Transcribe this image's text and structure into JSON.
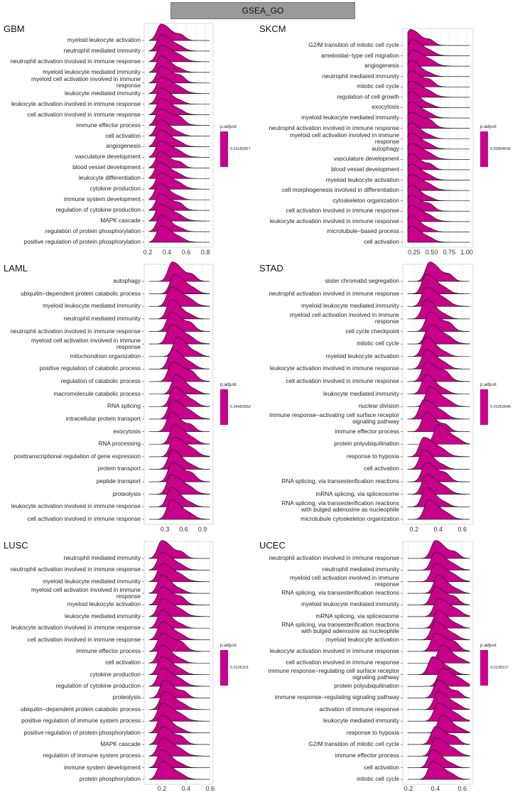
{
  "title": "GSEA_GO",
  "colors": {
    "fill": "#C8008A",
    "line": "#1a1a1a",
    "grid": "#ebebeb"
  },
  "chart_data": [
    {
      "type": "ridgeline",
      "title": "GBM",
      "xlim": [
        0.163,
        0.88
      ],
      "xticks": [
        "0.2",
        "0.4",
        "0.6",
        "0.8"
      ],
      "xtick_values": [
        0.2,
        0.4,
        0.6,
        0.8
      ],
      "legend": {
        "title": "p.adjust",
        "value": "0.01182827"
      },
      "categories": [
        "myeloid leukocyte activation",
        "neutrophil mediated immunity",
        "neutrophil activation involved in immune response",
        "myeloid leukocyte mediated immunity",
        "myeloid cell activation involved in immune\nresponse",
        "leukocyte mediated immunity",
        "leukocyte activation involved in immune response",
        "cell activation involved in immune response",
        "immune effector process",
        "cell activation",
        "angiogenesis",
        "vasculature development",
        "blood vessel development",
        "leukocyte differentiation",
        "cytokine production",
        "immune system development",
        "regulation of cytokine production",
        "MAPK cascade",
        "regulation of protein phosphorylation",
        "positive regulation of protein phosphorylation"
      ],
      "peaks": [
        0.34,
        0.34,
        0.34,
        0.34,
        0.34,
        0.34,
        0.34,
        0.34,
        0.33,
        0.33,
        0.33,
        0.33,
        0.33,
        0.32,
        0.33,
        0.32,
        0.33,
        0.33,
        0.34,
        0.34
      ]
    },
    {
      "type": "ridgeline",
      "title": "SKCM",
      "xlim": [
        0.09,
        1.09
      ],
      "xticks": [
        "0.25",
        "0.50",
        "0.75",
        "1.00"
      ],
      "xtick_values": [
        0.25,
        0.5,
        0.75,
        1.0
      ],
      "legend": {
        "title": "p.adjust",
        "value": "0.02804036"
      },
      "categories": [
        "G2/M transition of mitotic cell cycle",
        "ameboidal−type cell migration",
        "angiogenesis",
        "neutrophil mediated immunity",
        "mitotic cell cycle",
        "regulation of cell growth",
        "exocytosis",
        "myeloid leukocyte mediated immunity",
        "neutrophil activation involved in immune response",
        "myeloid cell activation involved in immune\nresponse",
        "autophagy",
        "vasculature development",
        "blood vessel development",
        "myeloid leukocyte activation",
        "cell morphogenesis involved in differentiation",
        "cytoskeleton organization",
        "cell activation involved in immune response",
        "leukocyte activation involved in immune response",
        "microtubule−based process",
        "cell activation"
      ],
      "peaks": [
        0.2,
        0.22,
        0.22,
        0.2,
        0.2,
        0.2,
        0.2,
        0.2,
        0.2,
        0.2,
        0.2,
        0.2,
        0.2,
        0.2,
        0.2,
        0.2,
        0.2,
        0.2,
        0.2,
        0.2
      ]
    },
    {
      "type": "ridgeline",
      "title": "LAML",
      "xlim": [
        -0.03,
        1.07
      ],
      "xticks": [
        "0.3",
        "0.6",
        "0.9"
      ],
      "xtick_values": [
        0.3,
        0.6,
        0.9
      ],
      "legend": {
        "title": "p.adjust",
        "value": "0.04483952"
      },
      "categories": [
        "autophagy",
        "ubiquitin−dependent protein catabolic process",
        "myeloid leukocyte mediated immunity",
        "neutrophil mediated immunity",
        "neutrophil activation involved in immune response",
        "myeloid cell activation involved in immune\nresponse",
        "mitochondrion organization",
        "positive regulation of catabolic process",
        "regulation of catabolic process",
        "macromolecule catabolic process",
        "RNA splicing",
        "intracellular protein transport",
        "exocytosis",
        "RNA processing",
        "posttranscriptional regulation of gene expression",
        "protein transport",
        "peptide transport",
        "proteolysis",
        "leukocyte activation involved in immune response",
        "cell activation involved in immune response"
      ],
      "peaks": [
        0.42,
        0.45,
        0.4,
        0.4,
        0.4,
        0.4,
        0.5,
        0.42,
        0.42,
        0.48,
        0.45,
        0.42,
        0.4,
        0.45,
        0.45,
        0.42,
        0.42,
        0.4,
        0.4,
        0.4
      ]
    },
    {
      "type": "ridgeline",
      "title": "STAD",
      "xlim": [
        0.106,
        0.69
      ],
      "xticks": [
        "0.2",
        "0.4",
        "0.6"
      ],
      "xtick_values": [
        0.2,
        0.4,
        0.6
      ],
      "legend": {
        "title": "p.adjust",
        "value": "0.01262646"
      },
      "categories": [
        "sister chromatid segregation",
        "neutrophil activation involved in immune response",
        "myeloid leukocyte mediated immunity",
        "myeloid cell activation involved in immune\nresponse",
        "cell cycle checkpoint",
        "mitotic cell cycle",
        "myeloid leukocyte activation",
        "leukocyte activation involved in immune response",
        "cell activation involved in immune response",
        "leukocyte mediated immunity",
        "nuclear division",
        "immune response−activating cell surface receptor\nsignaling pathway",
        "immune effector process",
        "protein polyubiquitination",
        "response to hypoxia",
        "cell activation",
        "RNA splicing, via transesterification reactions",
        "mRNA splicing, via spliceosome",
        "RNA splicing, via transesterification reactions\nwith bulged adenosine as nucleophile",
        "microtubule cytoskeleton organization"
      ],
      "peaks": [
        0.33,
        0.3,
        0.3,
        0.3,
        0.33,
        0.33,
        0.3,
        0.3,
        0.3,
        0.3,
        0.33,
        0.28,
        0.3,
        0.4,
        0.28,
        0.28,
        0.3,
        0.3,
        0.3,
        0.32
      ]
    },
    {
      "type": "ridgeline",
      "title": "LUSC",
      "xlim": [
        0.053,
        0.624
      ],
      "xticks": [
        "0.2",
        "0.4",
        "0.6"
      ],
      "xtick_values": [
        0.2,
        0.4,
        0.6
      ],
      "legend": {
        "title": "p.adjust",
        "value": "0.0126151"
      },
      "categories": [
        "neutrophil mediated immunity",
        "neutrophil activation involved in immune response",
        "myeloid leukocyte mediated immunity",
        "myeloid cell activation involved in immune\nresponse",
        "myeloid leukocyte activation",
        "leukocyte mediated immunity",
        "leukocyte activation involved in immune response",
        "cell activation involved in immune response",
        "immune effector process",
        "cell activation",
        "cytokine production",
        "regulation of cytokine production",
        "proteolysis",
        "ubiquitin−dependent protein catabolic process",
        "positive regulation of immune system process",
        "positive regulation of protein phosphorylation",
        "MAPK cascade",
        "regulation of immune system process",
        "immune system development",
        "protein phosphorylation"
      ],
      "peaks": [
        0.2,
        0.2,
        0.2,
        0.2,
        0.2,
        0.2,
        0.2,
        0.2,
        0.2,
        0.2,
        0.2,
        0.2,
        0.22,
        0.22,
        0.2,
        0.2,
        0.2,
        0.2,
        0.2,
        0.2
      ]
    },
    {
      "type": "ridgeline",
      "title": "UCEC",
      "xlim": [
        0.158,
        0.68
      ],
      "xticks": [
        "0.2",
        "0.4",
        "0.6"
      ],
      "xtick_values": [
        0.2,
        0.4,
        0.6
      ],
      "legend": {
        "title": "p.adjust",
        "value": "0.0128117"
      },
      "categories": [
        "neutrophil activation involved in immune response",
        "neutrophil mediated immunity",
        "myeloid cell activation involved in immune\nresponse",
        "RNA splicing, via transesterification reactions",
        "myeloid leukocyte mediated immunity",
        "mRNA splicing, via spliceosome",
        "RNA splicing, via transesterification reactions\nwith bulged adenosine as nucleophile",
        "myeloid leukocyte activation",
        "leukocyte activation involved in immune response",
        "cell activation involved in immune response",
        "immune response−regulating cell surface receptor\nsignaling pathway",
        "protein polyubiquitination",
        "immune response−regulating signaling pathway",
        "activation of immune response",
        "leukocyte mediated immunity",
        "response to hypoxia",
        "G2/M transition of mitotic cell cycle",
        "immune effector process",
        "cell activation",
        "mitotic cell cycle"
      ],
      "peaks": [
        0.4,
        0.4,
        0.4,
        0.42,
        0.4,
        0.42,
        0.42,
        0.4,
        0.4,
        0.45,
        0.38,
        0.45,
        0.42,
        0.42,
        0.42,
        0.45,
        0.4,
        0.4,
        0.38,
        0.38
      ]
    }
  ]
}
